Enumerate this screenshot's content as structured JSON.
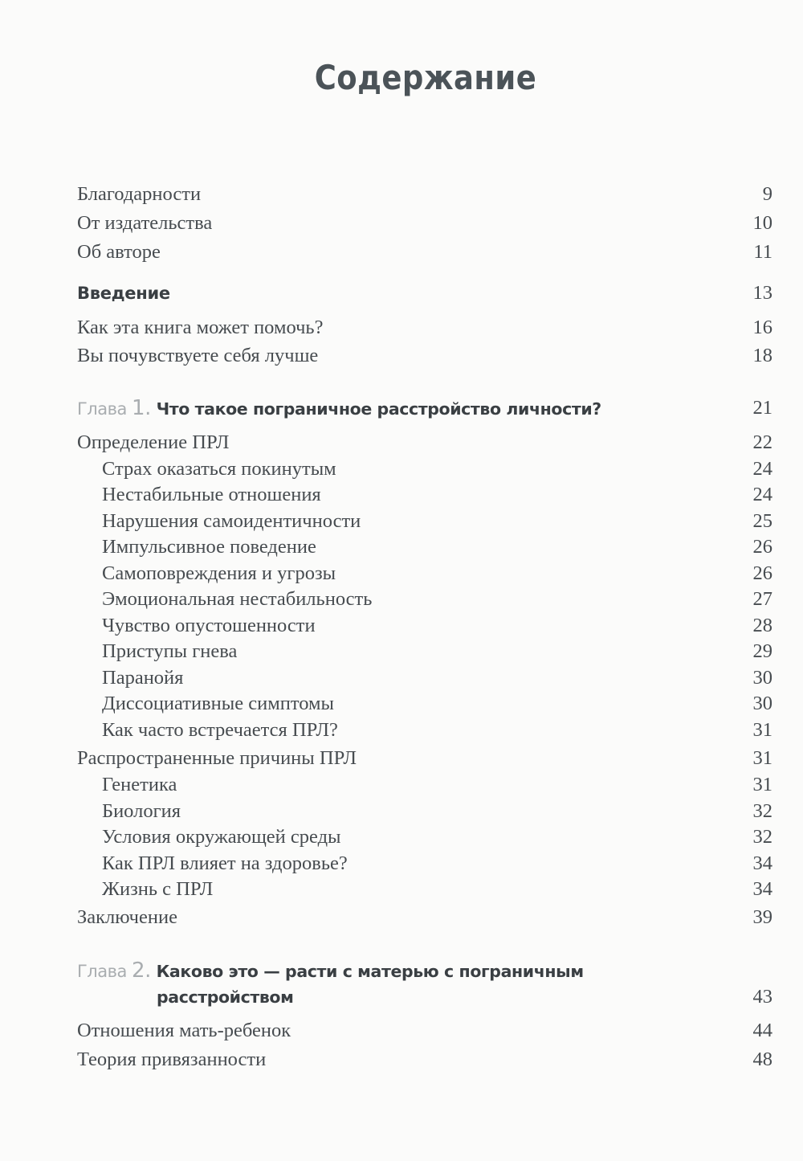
{
  "title": "Содержание",
  "front": [
    {
      "label": "Благодарности",
      "page": "9"
    },
    {
      "label": "От издательства",
      "page": "10"
    },
    {
      "label": "Об авторе",
      "page": "11"
    }
  ],
  "intro": {
    "label": "Введение",
    "page": "13",
    "items": [
      {
        "label": "Как эта книга может помочь?",
        "page": "16"
      },
      {
        "label": "Вы почувствуете себя лучше",
        "page": "18"
      }
    ]
  },
  "chapter1": {
    "prefix": "Глава",
    "number": "1.",
    "title": "Что такое пограничное расстройство личности?",
    "page": "21",
    "items": [
      {
        "label": "Определение ПРЛ",
        "page": "22",
        "level": 1
      },
      {
        "label": "Страх оказаться покинутым",
        "page": "24",
        "level": 2
      },
      {
        "label": "Нестабильные отношения",
        "page": "24",
        "level": 2
      },
      {
        "label": "Нарушения самоидентичности",
        "page": "25",
        "level": 2
      },
      {
        "label": "Импульсивное поведение",
        "page": "26",
        "level": 2
      },
      {
        "label": "Самоповреждения и угрозы",
        "page": "26",
        "level": 2
      },
      {
        "label": "Эмоциональная нестабильность",
        "page": "27",
        "level": 2
      },
      {
        "label": "Чувство опустошенности",
        "page": "28",
        "level": 2
      },
      {
        "label": "Приступы гнева",
        "page": "29",
        "level": 2
      },
      {
        "label": "Паранойя",
        "page": "30",
        "level": 2
      },
      {
        "label": "Диссоциативные симптомы",
        "page": "30",
        "level": 2
      },
      {
        "label": "Как часто встречается ПРЛ?",
        "page": "31",
        "level": 2
      },
      {
        "label": "Распространенные причины ПРЛ",
        "page": "31",
        "level": 1
      },
      {
        "label": "Генетика",
        "page": "31",
        "level": 2
      },
      {
        "label": "Биология",
        "page": "32",
        "level": 2
      },
      {
        "label": "Условия окружающей среды",
        "page": "32",
        "level": 2
      },
      {
        "label": "Как ПРЛ влияет на здоровье?",
        "page": "34",
        "level": 2
      },
      {
        "label": "Жизнь с ПРЛ",
        "page": "34",
        "level": 2
      },
      {
        "label": "Заключение",
        "page": "39",
        "level": 1
      }
    ]
  },
  "chapter2": {
    "prefix": "Глава",
    "number": "2.",
    "title_line1": "Каково это — расти с матерью с пограничным",
    "title_line2": "расстройством",
    "page": "43",
    "items": [
      {
        "label": "Отношения мать-ребенок",
        "page": "44",
        "level": 1
      },
      {
        "label": "Теория привязанности",
        "page": "48",
        "level": 1
      }
    ]
  }
}
